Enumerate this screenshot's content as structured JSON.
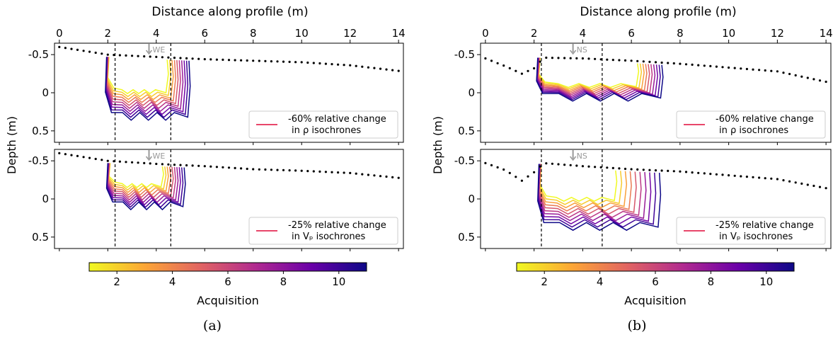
{
  "figure": {
    "panel_a": {
      "caption": "(a)",
      "top_xlabel": "Distance along profile (m)",
      "ylabel": "Depth (m)",
      "arrow_label": "WE",
      "colorbar_label": "Acquisition"
    },
    "panel_b": {
      "caption": "(b)",
      "top_xlabel": "Distance along profile (m)",
      "ylabel": "Depth (m)",
      "arrow_label": "NS",
      "colorbar_label": "Acquisition"
    }
  },
  "chart_data": [
    {
      "id": "a-top",
      "type": "line",
      "xlim": [
        -0.2,
        14.2
      ],
      "ylim": [
        0.65,
        -0.65
      ],
      "xticks": [
        0,
        2,
        4,
        6,
        8,
        10,
        12,
        14
      ],
      "yticks": [
        -0.5,
        0,
        0.5
      ],
      "ytick_labels": [
        "-0.5",
        "0",
        "0.5"
      ],
      "dashed_x": [
        2.3,
        4.6
      ],
      "arrow_x": 3.7,
      "legend": [
        "-60% relative change",
        "in ρ isochrones"
      ],
      "surface": {
        "x": [
          0,
          2,
          4,
          6,
          8,
          10,
          12,
          14.2
        ],
        "y": [
          -0.6,
          -0.5,
          -0.47,
          -0.44,
          -0.42,
          -0.4,
          -0.36,
          -0.28
        ]
      },
      "isochrones": {
        "x_left": 2.05,
        "top_y": -0.47,
        "count": 10,
        "x_right_start": 4.5,
        "x_right_end": 5.4,
        "depth_start": -0.02,
        "depth_end": 0.3
      }
    },
    {
      "id": "a-bottom",
      "type": "line",
      "xlim": [
        -0.2,
        14.2
      ],
      "ylim": [
        0.65,
        -0.65
      ],
      "xticks": [
        0,
        2,
        4,
        6,
        8,
        10,
        12,
        14
      ],
      "yticks": [
        -0.5,
        0,
        0.5
      ],
      "ytick_labels": [
        "-0.5",
        "0",
        "0.5"
      ],
      "dashed_x": [
        2.3,
        4.6
      ],
      "arrow_x": 3.7,
      "legend": [
        "-25% relative change",
        "in Vₚ isochrones"
      ],
      "surface": {
        "x": [
          0,
          2,
          4,
          6,
          8,
          10,
          12,
          14.2
        ],
        "y": [
          -0.6,
          -0.5,
          -0.46,
          -0.43,
          -0.39,
          -0.37,
          -0.34,
          -0.27
        ]
      },
      "isochrones": {
        "x_left": 2.1,
        "top_y": -0.47,
        "count": 10,
        "x_right_start": 4.3,
        "x_right_end": 5.2,
        "depth_start": -0.18,
        "depth_end": 0.08
      }
    },
    {
      "id": "b-top",
      "type": "line",
      "xlim": [
        -0.2,
        14.2
      ],
      "ylim": [
        0.65,
        -0.65
      ],
      "xticks": [
        0,
        2,
        4,
        6,
        8,
        10,
        12,
        14
      ],
      "yticks": [
        -0.5,
        0,
        0.5
      ],
      "ytick_labels": [
        "-0.5",
        "0",
        "0.5"
      ],
      "dashed_x": [
        2.3,
        4.8
      ],
      "arrow_x": 3.6,
      "legend": [
        "-60% relative change",
        "in ρ isochrones"
      ],
      "surface": {
        "x": [
          0,
          0.8,
          1.5,
          2.0,
          2.4,
          4,
          6,
          8,
          10,
          12,
          14.2
        ],
        "y": [
          -0.45,
          -0.35,
          -0.25,
          -0.32,
          -0.46,
          -0.45,
          -0.42,
          -0.38,
          -0.33,
          -0.28,
          -0.13
        ]
      },
      "isochrones": {
        "x_left": 2.25,
        "top_y": -0.46,
        "count": 10,
        "x_right_start": 6.3,
        "x_right_end": 7.3,
        "depth_start": -0.1,
        "depth_end": 0.05
      }
    },
    {
      "id": "b-bottom",
      "type": "line",
      "xlim": [
        -0.2,
        14.2
      ],
      "ylim": [
        0.65,
        -0.65
      ],
      "xticks": [
        0,
        2,
        4,
        6,
        8,
        10,
        12,
        14
      ],
      "yticks": [
        -0.5,
        0,
        0.5
      ],
      "ytick_labels": [
        "-0.5",
        "0",
        "0.5"
      ],
      "dashed_x": [
        2.3,
        4.8
      ],
      "arrow_x": 3.6,
      "legend": [
        "-25% relative change",
        "in Vₚ isochrones"
      ],
      "surface": {
        "x": [
          0,
          0.8,
          1.5,
          2.0,
          2.4,
          4,
          6,
          8,
          10,
          12,
          14.2
        ],
        "y": [
          -0.47,
          -0.38,
          -0.24,
          -0.35,
          -0.47,
          -0.43,
          -0.39,
          -0.36,
          -0.31,
          -0.26,
          -0.13
        ]
      },
      "isochrones": {
        "x_left": 2.3,
        "top_y": -0.46,
        "count": 10,
        "x_right_start": 5.4,
        "x_right_end": 7.2,
        "depth_start": 0.0,
        "depth_end": 0.35
      }
    }
  ],
  "colorbar": {
    "range": [
      1,
      11
    ],
    "ticks": [
      2,
      4,
      6,
      8,
      10
    ],
    "colors": [
      "#f0f921",
      "#fca636",
      "#e16462",
      "#b12a90",
      "#6a00a8",
      "#0d0887"
    ]
  },
  "legend_line_color": "#e8466a"
}
